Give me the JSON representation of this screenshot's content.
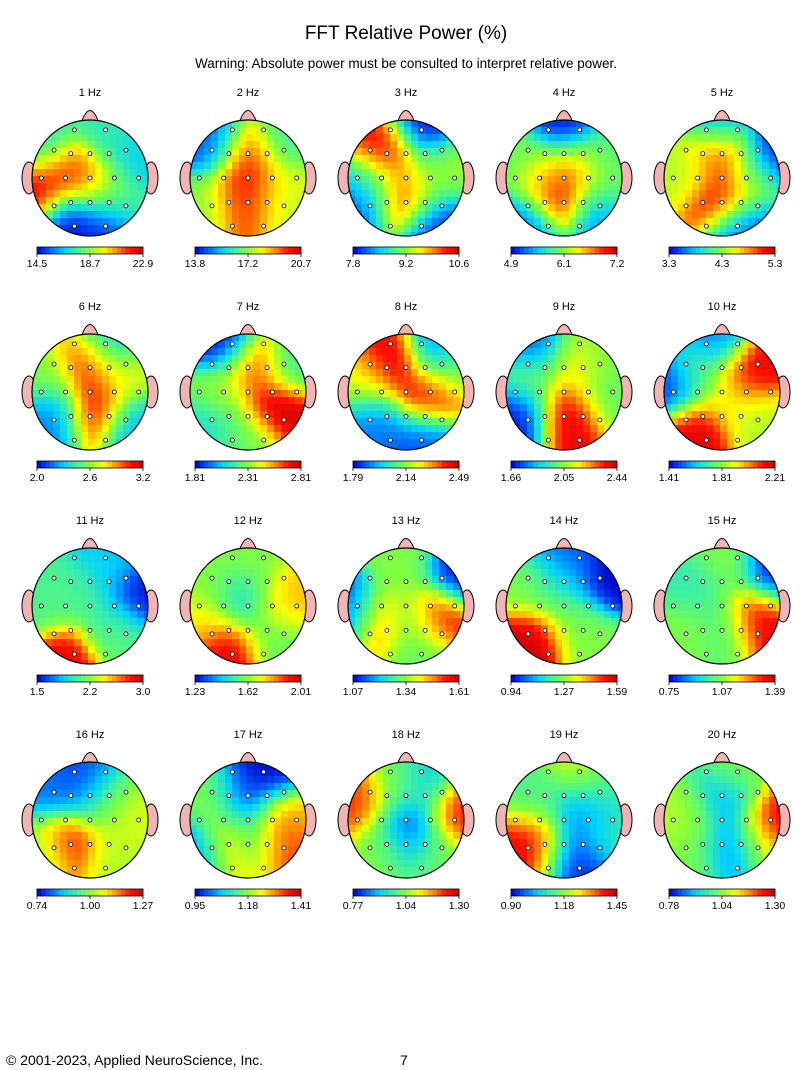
{
  "title": "FFT Relative Power  (%)",
  "warning": "Warning:  Absolute power must be consulted to interpret relative power.",
  "footer": {
    "copyright": "© 2001-2023, Applied NeuroScience, Inc.",
    "page_number": "7"
  },
  "colormap": [
    "#0000c8",
    "#0060ff",
    "#00d0ff",
    "#40f0a0",
    "#80ff40",
    "#ffff00",
    "#ff9000",
    "#ff1000",
    "#c80000"
  ],
  "head_colors": {
    "outline": "#000000",
    "nose_ears": "#f0b4b4",
    "electrode": "#ffffff"
  },
  "chart_data": [
    {
      "type": "heatmap",
      "label": "1 Hz",
      "scale": [
        "14.5",
        "18.7",
        "22.9"
      ],
      "min": 14.5,
      "max": 22.9,
      "blobs": [
        [
          -0.5,
          0.1,
          0.9
        ],
        [
          -0.95,
          -0.3,
          0.95
        ],
        [
          0.05,
          -0.1,
          0.75
        ],
        [
          0.5,
          -0.35,
          0.4
        ],
        [
          -0.4,
          -0.75,
          0.0
        ],
        [
          0.2,
          -0.8,
          0.05
        ],
        [
          0.4,
          0.75,
          0.35
        ],
        [
          0.75,
          0.3,
          0.25
        ],
        [
          -0.8,
          0.55,
          0.3
        ]
      ]
    },
    {
      "type": "heatmap",
      "label": "2 Hz",
      "scale": [
        "13.8",
        "17.2",
        "20.7"
      ],
      "min": 13.8,
      "max": 20.7,
      "blobs": [
        [
          0.0,
          0.35,
          0.95
        ],
        [
          0.05,
          -0.15,
          0.9
        ],
        [
          -0.1,
          -0.5,
          0.85
        ],
        [
          -0.55,
          0.55,
          0.1
        ],
        [
          0.55,
          0.55,
          0.35
        ],
        [
          -0.7,
          -0.5,
          0.5
        ],
        [
          0.6,
          -0.5,
          0.55
        ],
        [
          0.6,
          -0.1,
          0.6
        ]
      ]
    },
    {
      "type": "heatmap",
      "label": "3 Hz",
      "scale": [
        "7.8",
        "9.2",
        "10.6"
      ],
      "min": 7.8,
      "max": 10.6,
      "blobs": [
        [
          -0.3,
          0.45,
          0.95
        ],
        [
          0.0,
          -0.3,
          0.95
        ],
        [
          -0.75,
          -0.35,
          0.05
        ],
        [
          0.5,
          -0.7,
          0.05
        ],
        [
          0.3,
          0.8,
          0.0
        ],
        [
          0.7,
          0.2,
          0.55
        ],
        [
          -0.55,
          -0.05,
          0.5
        ],
        [
          0.35,
          -0.05,
          0.45
        ]
      ]
    },
    {
      "type": "heatmap",
      "label": "4 Hz",
      "scale": [
        "4.9",
        "6.1",
        "7.2"
      ],
      "min": 4.9,
      "max": 7.2,
      "blobs": [
        [
          -0.1,
          -0.35,
          1.0
        ],
        [
          0.15,
          0.2,
          0.8
        ],
        [
          -0.35,
          0.05,
          0.65
        ],
        [
          0.7,
          0.4,
          0.4
        ],
        [
          0.0,
          0.8,
          0.0
        ],
        [
          -0.6,
          -0.75,
          0.1
        ],
        [
          0.55,
          -0.6,
          0.15
        ],
        [
          -0.75,
          0.3,
          0.45
        ],
        [
          0.7,
          -0.1,
          0.5
        ]
      ]
    },
    {
      "type": "heatmap",
      "label": "5 Hz",
      "scale": [
        "3.3",
        "4.3",
        "5.3"
      ],
      "min": 3.3,
      "max": 5.3,
      "blobs": [
        [
          0.0,
          0.5,
          1.0
        ],
        [
          0.0,
          -0.35,
          0.95
        ],
        [
          0.0,
          0.85,
          0.05
        ],
        [
          0.85,
          0.45,
          0.0
        ],
        [
          0.35,
          -0.8,
          0.1
        ],
        [
          -0.6,
          0.1,
          0.55
        ],
        [
          0.5,
          0.05,
          0.5
        ]
      ]
    },
    {
      "type": "heatmap",
      "label": "6 Hz",
      "scale": [
        "2.0",
        "2.6",
        "3.2"
      ],
      "min": 2.0,
      "max": 3.2,
      "blobs": [
        [
          0.0,
          0.5,
          0.95
        ],
        [
          0.1,
          -0.3,
          0.95
        ],
        [
          -0.6,
          -0.4,
          0.15
        ],
        [
          0.7,
          -0.55,
          0.2
        ],
        [
          0.3,
          0.8,
          0.2
        ],
        [
          -0.7,
          0.3,
          0.5
        ],
        [
          0.6,
          0.25,
          0.6
        ]
      ]
    },
    {
      "type": "heatmap",
      "label": "7 Hz",
      "scale": [
        "1.81",
        "2.31",
        "2.81"
      ],
      "min": 1.81,
      "max": 2.81,
      "blobs": [
        [
          0.5,
          -0.3,
          1.0
        ],
        [
          0.1,
          0.45,
          0.9
        ],
        [
          -0.4,
          0.8,
          0.0
        ],
        [
          -0.7,
          -0.55,
          0.3
        ],
        [
          0.7,
          0.45,
          0.35
        ],
        [
          -0.45,
          0.0,
          0.55
        ],
        [
          0.0,
          -0.75,
          0.45
        ]
      ]
    },
    {
      "type": "heatmap",
      "label": "8 Hz",
      "scale": [
        "1.79",
        "2.14",
        "2.49"
      ],
      "min": 1.79,
      "max": 2.49,
      "blobs": [
        [
          0.4,
          -0.1,
          0.95
        ],
        [
          -0.25,
          0.5,
          0.95
        ],
        [
          -0.6,
          -0.5,
          0.15
        ],
        [
          0.55,
          0.75,
          0.15
        ],
        [
          0.3,
          -0.75,
          0.1
        ],
        [
          -0.7,
          0.15,
          0.6
        ],
        [
          0.75,
          0.35,
          0.5
        ]
      ]
    },
    {
      "type": "heatmap",
      "label": "9 Hz",
      "scale": [
        "1.66",
        "2.05",
        "2.44"
      ],
      "min": 1.66,
      "max": 2.44,
      "blobs": [
        [
          0.05,
          -0.35,
          0.95
        ],
        [
          0.15,
          0.45,
          0.65
        ],
        [
          -0.75,
          -0.35,
          0.0
        ],
        [
          -0.5,
          0.75,
          0.1
        ],
        [
          0.7,
          0.0,
          0.45
        ],
        [
          0.6,
          0.7,
          0.5
        ],
        [
          -0.6,
          0.2,
          0.5
        ]
      ]
    },
    {
      "type": "heatmap",
      "label": "10 Hz",
      "scale": [
        "1.41",
        "1.81",
        "2.21"
      ],
      "min": 1.41,
      "max": 2.21,
      "blobs": [
        [
          0.45,
          0.3,
          0.95
        ],
        [
          -0.45,
          -0.65,
          0.95
        ],
        [
          -0.85,
          0.1,
          0.05
        ],
        [
          -0.15,
          0.85,
          0.15
        ],
        [
          0.1,
          -0.1,
          0.6
        ],
        [
          0.6,
          -0.45,
          0.55
        ],
        [
          -0.4,
          0.35,
          0.45
        ]
      ]
    },
    {
      "type": "heatmap",
      "label": "11 Hz",
      "scale": [
        "1.5",
        "2.2",
        "3.0"
      ],
      "min": 1.5,
      "max": 3.0,
      "blobs": [
        [
          -0.4,
          -0.85,
          0.95
        ],
        [
          0.85,
          0.1,
          0.0
        ],
        [
          0.3,
          0.65,
          0.25
        ],
        [
          -0.2,
          0.2,
          0.4
        ],
        [
          0.3,
          -0.35,
          0.35
        ],
        [
          -0.8,
          0.0,
          0.4
        ],
        [
          0.55,
          -0.5,
          0.45
        ]
      ]
    },
    {
      "type": "heatmap",
      "label": "12 Hz",
      "scale": [
        "1.23",
        "1.62",
        "2.01"
      ],
      "min": 1.23,
      "max": 2.01,
      "blobs": [
        [
          -0.35,
          -0.75,
          0.95
        ],
        [
          0.55,
          0.05,
          0.7
        ],
        [
          -0.1,
          0.1,
          0.25
        ],
        [
          0.0,
          0.75,
          0.5
        ],
        [
          -0.7,
          0.35,
          0.5
        ],
        [
          0.4,
          -0.55,
          0.45
        ],
        [
          -0.75,
          -0.25,
          0.65
        ]
      ]
    },
    {
      "type": "heatmap",
      "label": "13 Hz",
      "scale": [
        "1.07",
        "1.34",
        "1.61"
      ],
      "min": 1.07,
      "max": 1.61,
      "blobs": [
        [
          0.5,
          -0.15,
          0.95
        ],
        [
          -0.45,
          -0.25,
          0.9
        ],
        [
          0.05,
          -0.2,
          0.35
        ],
        [
          0.85,
          0.55,
          0.0
        ],
        [
          -0.85,
          -0.1,
          0.05
        ],
        [
          0.0,
          0.7,
          0.5
        ],
        [
          0.2,
          -0.75,
          0.45
        ]
      ]
    },
    {
      "type": "heatmap",
      "label": "14 Hz",
      "scale": [
        "0.94",
        "1.27",
        "1.59"
      ],
      "min": 0.94,
      "max": 1.59,
      "blobs": [
        [
          -0.5,
          -0.6,
          1.0
        ],
        [
          0.75,
          0.45,
          0.0
        ],
        [
          0.05,
          0.8,
          0.1
        ],
        [
          0.1,
          -0.2,
          0.45
        ],
        [
          -0.55,
          0.3,
          0.5
        ],
        [
          0.4,
          -0.6,
          0.5
        ],
        [
          -0.1,
          0.45,
          0.3
        ]
      ]
    },
    {
      "type": "heatmap",
      "label": "15 Hz",
      "scale": [
        "0.75",
        "1.07",
        "1.39"
      ],
      "min": 0.75,
      "max": 1.39,
      "blobs": [
        [
          0.6,
          -0.15,
          0.95
        ],
        [
          0.85,
          0.55,
          0.0
        ],
        [
          -0.45,
          0.3,
          0.35
        ],
        [
          0.0,
          -0.3,
          0.4
        ],
        [
          -0.6,
          -0.45,
          0.5
        ],
        [
          0.1,
          0.7,
          0.5
        ]
      ]
    },
    {
      "type": "heatmap",
      "label": "16 Hz",
      "scale": [
        "0.74",
        "1.00",
        "1.27"
      ],
      "min": 0.74,
      "max": 1.27,
      "blobs": [
        [
          -0.4,
          -0.35,
          0.95
        ],
        [
          -0.1,
          0.55,
          0.05
        ],
        [
          -0.65,
          0.45,
          0.15
        ],
        [
          0.55,
          0.05,
          0.6
        ],
        [
          0.4,
          -0.6,
          0.55
        ],
        [
          0.2,
          0.3,
          0.45
        ],
        [
          -0.8,
          -0.5,
          0.45
        ]
      ]
    },
    {
      "type": "heatmap",
      "label": "17 Hz",
      "scale": [
        "0.95",
        "1.18",
        "1.41"
      ],
      "min": 0.95,
      "max": 1.41,
      "blobs": [
        [
          -0.35,
          -0.4,
          0.95
        ],
        [
          0.45,
          -0.25,
          0.9
        ],
        [
          -0.05,
          0.4,
          0.05
        ],
        [
          0.5,
          0.85,
          0.0
        ],
        [
          -0.75,
          -0.5,
          0.05
        ],
        [
          0.0,
          -0.25,
          0.15
        ],
        [
          0.75,
          0.1,
          0.7
        ],
        [
          -0.6,
          0.3,
          0.5
        ]
      ]
    },
    {
      "type": "heatmap",
      "label": "18 Hz",
      "scale": [
        "0.77",
        "1.04",
        "1.30"
      ],
      "min": 0.77,
      "max": 1.3,
      "blobs": [
        [
          0.05,
          -0.15,
          0.0
        ],
        [
          0.85,
          0.1,
          0.9
        ],
        [
          -0.85,
          0.3,
          0.85
        ],
        [
          0.3,
          0.6,
          0.25
        ],
        [
          -0.4,
          -0.4,
          0.5
        ],
        [
          0.45,
          -0.5,
          0.45
        ],
        [
          -0.15,
          0.55,
          0.5
        ]
      ]
    },
    {
      "type": "heatmap",
      "label": "19 Hz",
      "scale": [
        "0.90",
        "1.18",
        "1.45"
      ],
      "min": 0.9,
      "max": 1.45,
      "blobs": [
        [
          -0.4,
          -0.35,
          0.95
        ],
        [
          0.15,
          -0.5,
          0.0
        ],
        [
          0.3,
          0.1,
          0.05
        ],
        [
          -0.35,
          0.3,
          0.4
        ],
        [
          0.6,
          0.45,
          0.35
        ],
        [
          0.55,
          -0.15,
          0.4
        ],
        [
          0.3,
          0.75,
          0.6
        ]
      ]
    },
    {
      "type": "heatmap",
      "label": "20 Hz",
      "scale": [
        "0.78",
        "1.04",
        "1.30"
      ],
      "min": 0.78,
      "max": 1.3,
      "blobs": [
        [
          0.85,
          0.0,
          0.95
        ],
        [
          0.15,
          -0.45,
          0.0
        ],
        [
          0.1,
          0.3,
          0.15
        ],
        [
          0.3,
          0.75,
          0.5
        ],
        [
          -0.5,
          0.0,
          0.55
        ],
        [
          -0.35,
          -0.55,
          0.5
        ],
        [
          0.55,
          -0.4,
          0.6
        ]
      ]
    }
  ]
}
